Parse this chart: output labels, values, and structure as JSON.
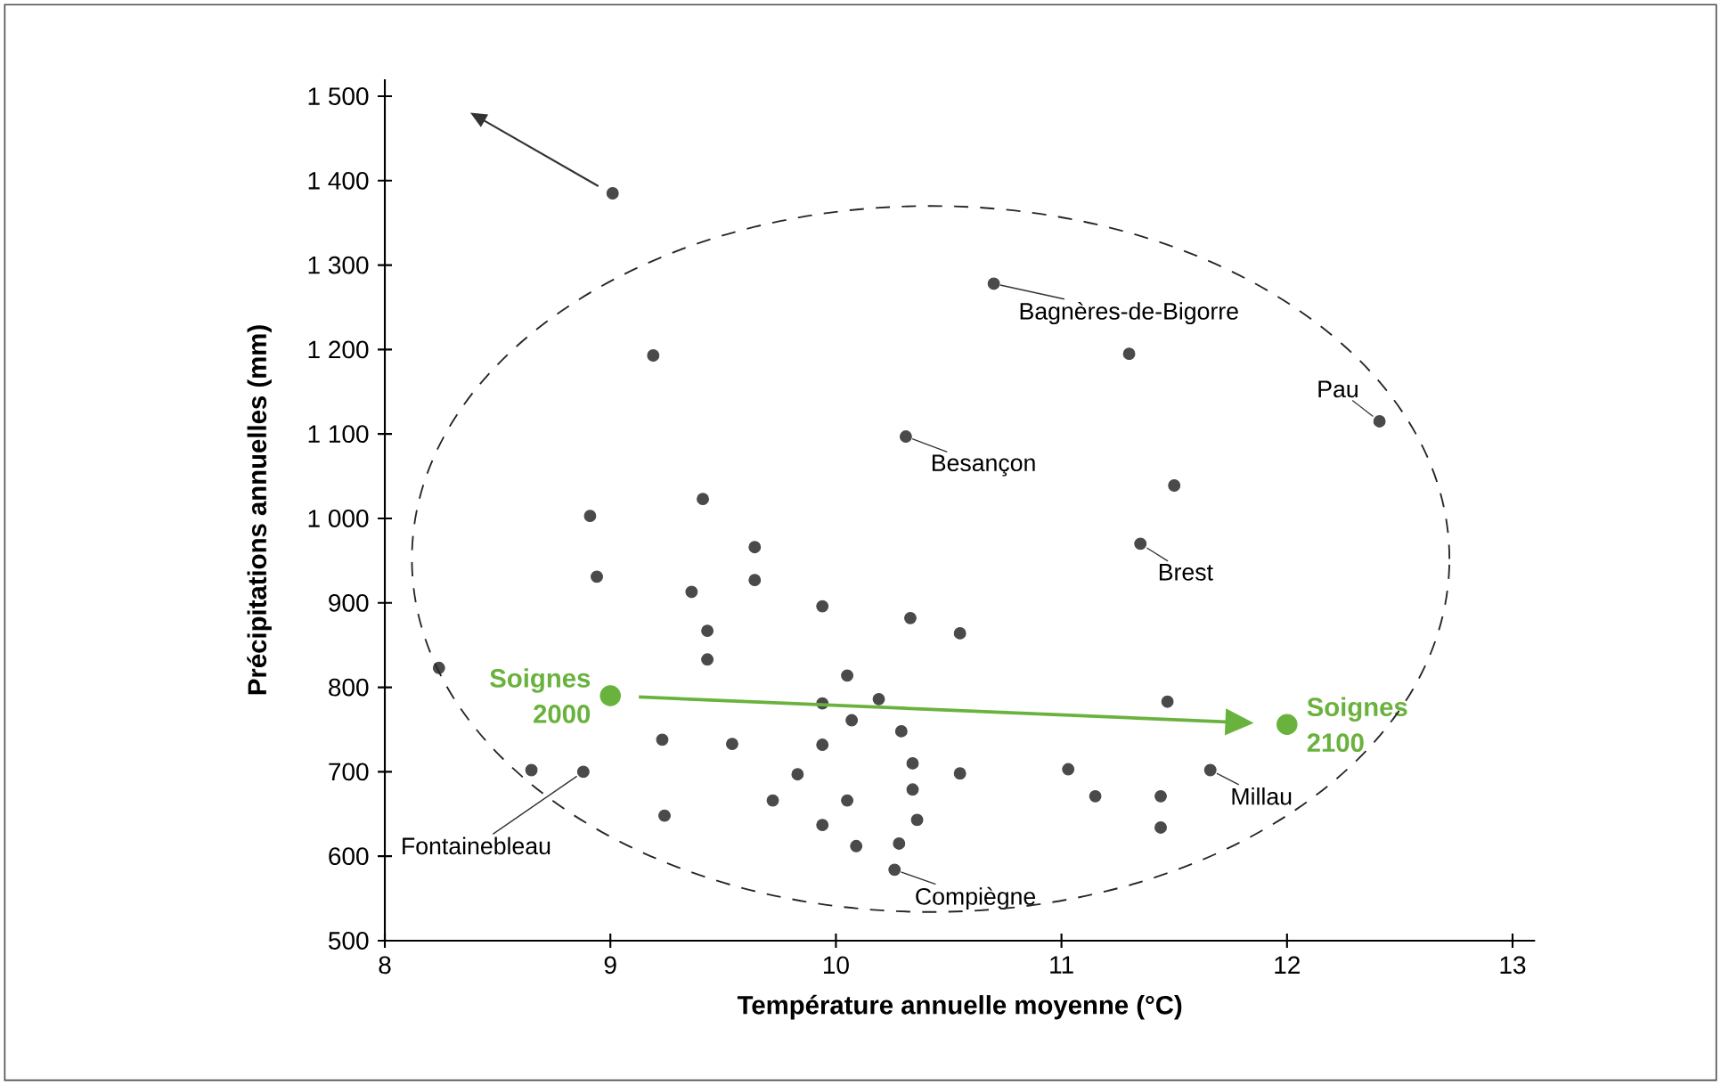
{
  "chart_data": {
    "type": "scatter",
    "xlabel": "Température annuelle moyenne (°C)",
    "ylabel": "Précipitations annuelles (mm)",
    "xlim": [
      8,
      13.1
    ],
    "ylim": [
      500,
      1520
    ],
    "xticks": [
      8,
      9,
      10,
      11,
      12,
      13
    ],
    "yticks": [
      500,
      600,
      700,
      800,
      900,
      {
        "value": 1000,
        "label": "1 000"
      },
      {
        "value": 1100,
        "label": "1 100"
      },
      {
        "value": 1200,
        "label": "1 200"
      },
      {
        "value": 1300,
        "label": "1 300"
      },
      {
        "value": 1400,
        "label": "1 400"
      },
      {
        "value": 1500,
        "label": "1 500"
      }
    ],
    "marker": "circle",
    "series": [
      {
        "color": "#4a4a4a",
        "x": [
          9.01,
          9.19,
          10.31,
          9.41,
          8.91,
          9.64,
          8.94,
          9.64,
          9.36,
          10.7,
          11.3,
          12.41,
          11.5,
          11.35,
          9.94,
          10.33,
          10.55,
          9.43,
          9.43,
          8.24,
          10.05,
          10.19,
          9.94,
          10.07,
          10.29,
          9.23,
          9.54,
          9.94,
          10.34,
          10.55,
          8.65,
          8.88,
          9.83,
          9.72,
          10.05,
          10.34,
          10.36,
          9.24,
          9.94,
          10.09,
          10.28,
          10.26,
          11.47,
          11.03,
          11.66,
          11.15,
          11.44,
          11.44
        ],
        "values": [
          1385,
          1193,
          1097,
          1023,
          1003,
          966,
          931,
          927,
          913,
          1278,
          1195,
          1115,
          1039,
          970,
          896,
          882,
          864,
          867,
          833,
          823,
          814,
          786,
          781,
          761,
          748,
          738,
          733,
          732,
          710,
          698,
          702,
          700,
          697,
          666,
          666,
          679,
          643,
          648,
          637,
          612,
          615,
          584,
          783,
          703,
          702,
          671,
          671,
          634
        ]
      },
      {
        "color": "#6ab23e",
        "x": [
          9.0,
          12.0
        ],
        "values": [
          790,
          756
        ]
      }
    ],
    "annotations": [
      {
        "text": "Bagnères-de-Bigorre",
        "x": 10.7,
        "y": 1278
      },
      {
        "text": "Besançon",
        "x": 10.31,
        "y": 1097
      },
      {
        "text": "Pau",
        "x": 12.41,
        "y": 1115
      },
      {
        "text": "Brest",
        "x": 11.35,
        "y": 970
      },
      {
        "text": "Fontainebleau",
        "x": 8.88,
        "y": 700
      },
      {
        "text": "Compiègne",
        "x": 10.26,
        "y": 584
      },
      {
        "text": "Millau",
        "x": 11.66,
        "y": 702
      },
      {
        "text": "Soignes 2000",
        "x": 9.0,
        "y": 790
      },
      {
        "text": "Soignes 2100",
        "x": 12.0,
        "y": 756
      }
    ]
  }
}
